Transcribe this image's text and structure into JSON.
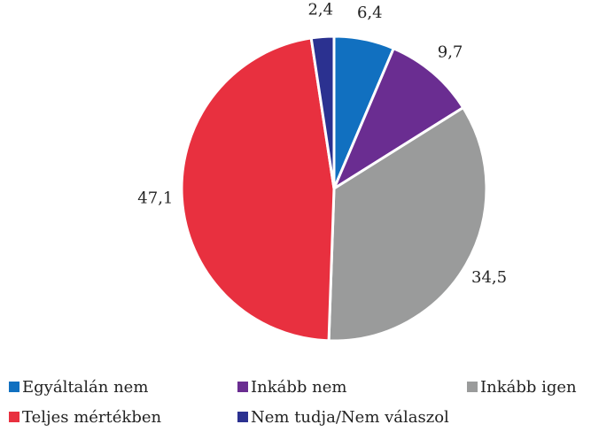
{
  "chart_data": {
    "type": "pie",
    "categories": [
      "Egyáltalán nem",
      "Inkább nem",
      "Inkább igen",
      "Teljes mértékben",
      "Nem tudja/Nem válaszol"
    ],
    "values": [
      6.4,
      9.7,
      34.5,
      47.1,
      2.4
    ],
    "value_labels": [
      "6,4",
      "9,7",
      "34,5",
      "47,1",
      "2,4"
    ],
    "colors": [
      "#1170c0",
      "#6a2d91",
      "#9a9b9b",
      "#e8303f",
      "#2b3190"
    ],
    "legend": "bottom"
  }
}
